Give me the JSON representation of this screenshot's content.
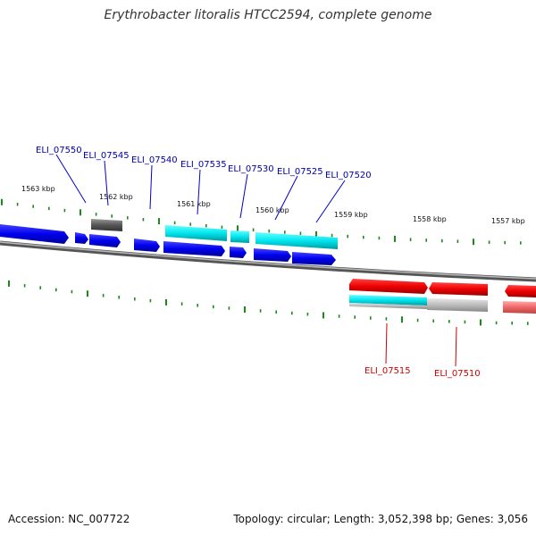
{
  "title": "Erythrobacter litoralis HTCC2594, complete genome",
  "footer": {
    "accession": "Accession: NC_007722",
    "topology": "Topology: circular; Length: 3,052,398 bp; Genes: 3,056"
  },
  "colors": {
    "forward_cds": "#0000ee",
    "forward_other": "#00e5ee",
    "reverse_cds": "#ee0000",
    "reverse_other": "#bbbbbb",
    "tick": "#1a8a1a",
    "backbone": "#888888",
    "forward_label": "#0000aa",
    "reverse_label": "#cc0000"
  },
  "scale": {
    "unit": "kbp",
    "labels": [
      "1563 kbp",
      "1562 kbp",
      "1561 kbp",
      "1560 kbp",
      "1559 kbp",
      "1558 kbp",
      "1557 kbp"
    ]
  },
  "forward_genes": [
    "ELI_07550",
    "ELI_07545",
    "ELI_07540",
    "ELI_07535",
    "ELI_07530",
    "ELI_07525",
    "ELI_07520"
  ],
  "reverse_genes": [
    "ELI_07515",
    "ELI_07510"
  ]
}
